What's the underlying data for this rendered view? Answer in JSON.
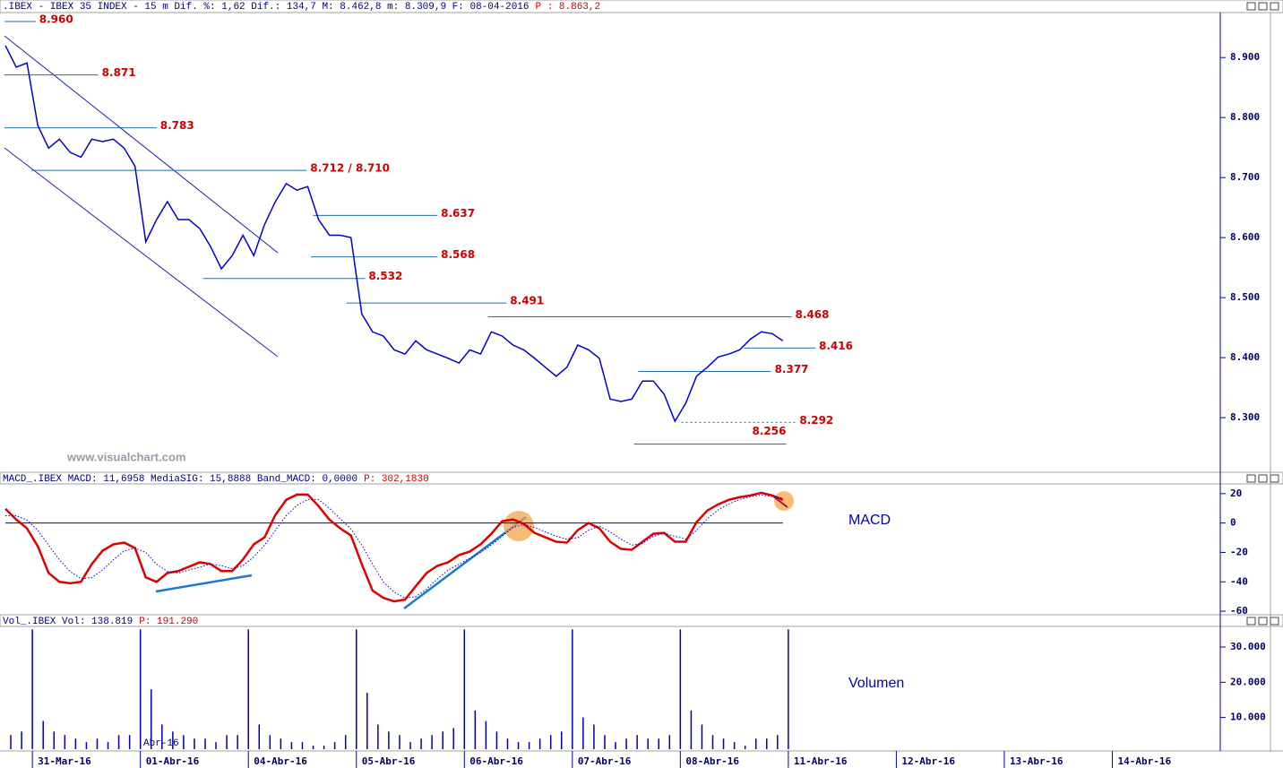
{
  "chart_data": [
    {
      "type": "line",
      "title": ".IBEX - IBEX 35 INDEX -  15 m Dif. %: 1,62 Dif.: 134,7 M: 8.462,8 m: 8.309,9 F: 08-04-2016",
      "title_value": "P : 8.863,2",
      "watermark": "www.visualchart.com",
      "color": "#0000cc",
      "xlim": [
        -3,
        110
      ],
      "x": [
        -2.5,
        -1.5,
        -0.5,
        0.5,
        1.5,
        2.5,
        3.5,
        4.5,
        5.5,
        6.5,
        7.5,
        8.5,
        9.5,
        10.5,
        11.5,
        12.5,
        13.5,
        14.5,
        15.5,
        16.5,
        17.5,
        18.5,
        19.5,
        20.5,
        21.5,
        22.5,
        23.5,
        24.5,
        25.5,
        26.5,
        27.5,
        28.5,
        29.5,
        30.5,
        31.5,
        32.5,
        33.5,
        34.5,
        35.5,
        36.5,
        37.5,
        38.5,
        39.5,
        40.5,
        41.5,
        42.5,
        43.5,
        44.5,
        45.5,
        46.5,
        47.5,
        48.5,
        49.5,
        50.5,
        51.5,
        52.5,
        53.5,
        54.5,
        55.5,
        56.5,
        57.5,
        58.5,
        59.5,
        60.5,
        61.5,
        62.5,
        63.5,
        64.5,
        65.5,
        66.5,
        67.5,
        68.5,
        69.5
      ],
      "values": [
        8.92,
        8.884,
        8.891,
        8.787,
        8.749,
        8.764,
        8.742,
        8.734,
        8.764,
        8.76,
        8.764,
        8.749,
        8.719,
        8.593,
        8.63,
        8.66,
        8.63,
        8.63,
        8.615,
        8.585,
        8.548,
        8.57,
        8.604,
        8.57,
        8.622,
        8.66,
        8.69,
        8.679,
        8.685,
        8.63,
        8.604,
        8.604,
        8.6,
        8.473,
        8.443,
        8.436,
        8.413,
        8.406,
        8.428,
        8.413,
        8.406,
        8.399,
        8.391,
        8.413,
        8.406,
        8.443,
        8.436,
        8.421,
        8.413,
        8.399,
        8.384,
        8.369,
        8.384,
        8.421,
        8.413,
        8.399,
        8.331,
        8.327,
        8.331,
        8.361,
        8.361,
        8.339,
        8.294,
        8.324,
        8.369,
        8.384,
        8.401,
        8.406,
        8.413,
        8.431,
        8.443,
        8.44,
        8.428
      ],
      "ylim": [
        8.212,
        8.975
      ],
      "yticks": [
        {
          "value": 8.3,
          "label": "8.300"
        },
        {
          "value": 8.4,
          "label": "8.400"
        },
        {
          "value": 8.5,
          "label": "8.500"
        },
        {
          "value": 8.6,
          "label": "8.600"
        },
        {
          "value": 8.7,
          "label": "8.700"
        },
        {
          "value": 8.8,
          "label": "8.800"
        },
        {
          "value": 8.9,
          "label": "8.900"
        }
      ],
      "level_color": "#1f6f9f",
      "levels": [
        {
          "value": 8.96,
          "label": "8.960",
          "x": [
            -2.6,
            0.3
          ]
        },
        {
          "value": 8.871,
          "label": "8.871",
          "x": [
            -2.6,
            6.1
          ]
        },
        {
          "value": 8.783,
          "label": "8.783",
          "x": [
            -2.6,
            11.5
          ]
        },
        {
          "value": 8.712,
          "label": "8.712 / 8.710",
          "x": [
            -0.1,
            25.4
          ]
        },
        {
          "value": 8.637,
          "label": "8.637",
          "x": [
            26.0,
            37.5
          ]
        },
        {
          "value": 8.568,
          "label": "8.568",
          "x": [
            25.8,
            37.5
          ]
        },
        {
          "value": 8.532,
          "label": "8.532",
          "x": [
            15.8,
            30.8
          ]
        },
        {
          "value": 8.491,
          "label": "8.491",
          "x": [
            29.1,
            43.9
          ]
        },
        {
          "value": 8.468,
          "label": "8.468",
          "x": [
            42.2,
            70.3
          ]
        },
        {
          "value": 8.416,
          "label": "8.416",
          "x": [
            65.9,
            72.5
          ]
        },
        {
          "value": 8.377,
          "label": "8.377",
          "x": [
            56.1,
            68.4
          ]
        },
        {
          "value": 8.292,
          "label": "8.292",
          "x": [
            60.1,
            70.7
          ],
          "dashed": true
        },
        {
          "value": 8.256,
          "label": "8.256",
          "x": [
            55.7,
            69.8
          ],
          "label_position": "above"
        }
      ]
    },
    {
      "type": "line",
      "title": "MACD_.IBEX MACD: 11,6958 MediaSIG: 15,8888 Band_MACD: 0,0000",
      "title_value": "P: 302,1830",
      "annotation": "MACD",
      "xlim": [
        -3,
        110
      ],
      "x": [
        -2.5,
        -1.5,
        -0.5,
        0.5,
        1.5,
        2.5,
        3.5,
        4.5,
        5.5,
        6.5,
        7.5,
        8.5,
        9.5,
        10.5,
        11.5,
        12.5,
        13.5,
        14.5,
        15.5,
        16.5,
        17.5,
        18.5,
        19.5,
        20.5,
        21.5,
        22.5,
        23.5,
        24.5,
        25.5,
        26.5,
        27.5,
        28.5,
        29.5,
        30.5,
        31.5,
        32.5,
        33.5,
        34.5,
        35.5,
        36.5,
        37.5,
        38.5,
        39.5,
        40.5,
        41.5,
        42.5,
        43.5,
        44.5,
        45.5,
        46.5,
        47.5,
        48.5,
        49.5,
        50.5,
        51.5,
        52.5,
        53.5,
        54.5,
        55.5,
        56.5,
        57.5,
        58.5,
        59.5,
        60.5,
        61.5,
        62.5,
        63.5,
        64.5,
        65.5,
        66.5,
        67.5,
        68.5,
        69.5
      ],
      "series": [
        {
          "color": "#dd0000",
          "style": "solid",
          "values": [
            9.7,
            2.4,
            -3.6,
            -15.8,
            -34,
            -40,
            -41,
            -40,
            -27.9,
            -18.8,
            -14.5,
            -13.3,
            -17,
            -37,
            -40,
            -34,
            -32.7,
            -29.7,
            -26.7,
            -27.9,
            -32.7,
            -32.7,
            -24.8,
            -14.5,
            -9.7,
            5.5,
            15.8,
            19.4,
            19.4,
            11.5,
            2.4,
            -3.6,
            -8.5,
            -27.9,
            -46,
            -50.9,
            -53.3,
            -52.1,
            -43,
            -34,
            -29.1,
            -26.7,
            -21.8,
            -19.4,
            -14.5,
            -7.3,
            1.2,
            2.4,
            -0.6,
            -6.7,
            -9.7,
            -12.7,
            -13.3,
            -4.8,
            0,
            -3.6,
            -12.7,
            -17.6,
            -18.2,
            -12.7,
            -7.3,
            -6.7,
            -12.7,
            -12.7,
            0.6,
            8.5,
            12.7,
            15.8,
            17.6,
            18.8,
            20.6,
            18.8,
            15.8
          ]
        },
        {
          "color": "#0000cc",
          "style": "dotted",
          "values": [
            5,
            5,
            2,
            -5,
            -15,
            -25,
            -33,
            -38,
            -37,
            -32,
            -25,
            -19,
            -17,
            -20,
            -28,
            -33,
            -34,
            -32,
            -30,
            -28,
            -29,
            -31,
            -29,
            -23,
            -15,
            -5,
            5,
            12,
            16,
            16,
            10,
            3,
            -4,
            -15,
            -28,
            -40,
            -47,
            -51,
            -50,
            -45,
            -38,
            -32,
            -28,
            -24,
            -20,
            -15,
            -9,
            -3,
            -1,
            -3,
            -6,
            -9,
            -11,
            -10,
            -5,
            -2,
            -6,
            -11,
            -15,
            -14,
            -9,
            -7,
            -9,
            -11,
            -5,
            3,
            9,
            13,
            16,
            18,
            19,
            18,
            17
          ]
        }
      ],
      "ylim": [
        -62.4,
        26
      ],
      "yticks": [
        -60,
        -40,
        -20,
        0,
        20
      ]
    },
    {
      "type": "bar",
      "title": "Vol_.IBEX Vol: 138.819",
      "title_value": "P: 191.290",
      "annotation": "Volumen",
      "month_label": "Abr-16",
      "color": "#0000aa",
      "xlim": [
        -3,
        110
      ],
      "x": [
        -2,
        -1,
        0,
        1,
        2,
        3,
        4,
        5,
        6,
        7,
        8,
        9,
        10,
        11,
        12,
        13,
        14,
        15,
        16,
        17,
        18,
        19,
        20,
        21,
        22,
        23,
        24,
        25,
        26,
        27,
        28,
        29,
        30,
        31,
        32,
        33,
        34,
        35,
        36,
        37,
        38,
        39,
        40,
        41,
        42,
        43,
        44,
        45,
        46,
        47,
        48,
        49,
        50,
        51,
        52,
        53,
        54,
        55,
        56,
        57,
        58,
        59,
        60,
        61,
        62,
        63,
        64,
        65,
        66,
        67,
        68,
        69,
        70
      ],
      "values": [
        5000,
        6000,
        35000,
        9000,
        6000,
        5000,
        4000,
        3000,
        4000,
        3000,
        5000,
        5000,
        35000,
        18000,
        8000,
        6000,
        5000,
        4000,
        4000,
        3000,
        5000,
        5000,
        35000,
        8000,
        5000,
        4000,
        3000,
        3000,
        2000,
        2000,
        3000,
        5000,
        35000,
        17000,
        8000,
        6000,
        5000,
        3000,
        4000,
        5000,
        6000,
        7000,
        35000,
        12000,
        9000,
        6000,
        4000,
        3000,
        3000,
        4000,
        5000,
        6000,
        35000,
        10000,
        8000,
        5000,
        3000,
        4000,
        5000,
        4000,
        4000,
        5000,
        35000,
        12000,
        8000,
        5000,
        4000,
        3000,
        2000,
        4000,
        4000,
        5000,
        35000
      ],
      "ylim": [
        1000,
        35600
      ],
      "yticks": [
        {
          "value": 10000,
          "label": "10.000"
        },
        {
          "value": 20000,
          "label": "20.000"
        },
        {
          "value": 30000,
          "label": "30.000"
        }
      ],
      "xticks": [
        {
          "value": 0,
          "label": "31-Mar-16"
        },
        {
          "value": 10,
          "label": "01-Abr-16"
        },
        {
          "value": 20,
          "label": "04-Abr-16"
        },
        {
          "value": 30,
          "label": "05-Abr-16"
        },
        {
          "value": 40,
          "label": "06-Abr-16"
        },
        {
          "value": 50,
          "label": "07-Abr-16"
        },
        {
          "value": 60,
          "label": "08-Abr-16"
        },
        {
          "value": 70,
          "label": "11-Abr-16"
        },
        {
          "value": 80,
          "label": "12-Abr-16"
        },
        {
          "value": 90,
          "label": "13-Abr-16"
        },
        {
          "value": 100,
          "label": "14-Abr-16"
        }
      ]
    }
  ]
}
